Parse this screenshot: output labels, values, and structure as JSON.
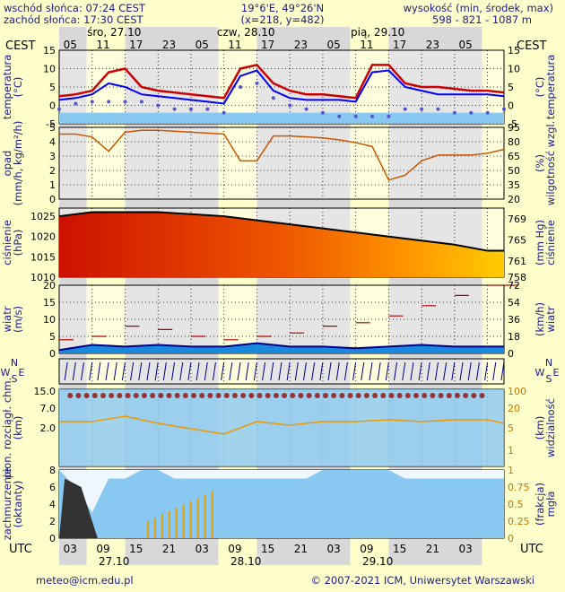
{
  "header": {
    "sunrise": "wschód słońca: 07:24 CEST",
    "sunset": "zachód słońca: 17:30 CEST",
    "coords": "19°6'E, 49°26'N",
    "grid": "(x=218,  y=482)",
    "alt_label": "wysokość (min, środek, max)",
    "alt_values": "598 - 821 - 1087 m"
  },
  "time_axis": {
    "top_zone": "CEST",
    "bottom_zone": "UTC",
    "top_hours": [
      "05",
      "11",
      "17",
      "23",
      "05",
      "11",
      "17",
      "23",
      "05",
      "11",
      "17",
      "23",
      "05"
    ],
    "bottom_hours": [
      "03",
      "09",
      "15",
      "21",
      "03",
      "09",
      "15",
      "21",
      "03",
      "09",
      "15",
      "21",
      "03"
    ],
    "top_days": [
      "śro, 27.10",
      "czw, 28.10",
      "pią, 29.10"
    ],
    "bottom_days": [
      "27.10",
      "28.10",
      "29.10"
    ]
  },
  "panels": {
    "temp": {
      "left": "temperatura",
      "left_unit": "(°C)",
      "right": "temperatura",
      "right_unit": "(°C)",
      "ticks": [
        "15",
        "10",
        "5",
        "0",
        "-5"
      ]
    },
    "precip": {
      "left": "opad",
      "left_unit": "(mm/h, kg/m²/h)",
      "right": "wilgotność wzgl.",
      "right_unit": "(%)",
      "ticks": [
        "5",
        "4",
        "3",
        "2",
        "1",
        "0"
      ],
      "rticks": [
        "95",
        "80",
        "65",
        "50",
        "35",
        "20"
      ]
    },
    "pressure": {
      "left": "ciśnienie",
      "left_unit": "(hPa)",
      "right": "ciśnienie",
      "right_unit": "(mm Hg)",
      "ticks": [
        "1025",
        "1020",
        "1015",
        "1010"
      ],
      "rticks": [
        "769",
        "765",
        "761",
        "758"
      ]
    },
    "wind": {
      "left": "wiatr",
      "left_unit": "(m/s)",
      "right": "wiatr",
      "right_unit": "(km/h)",
      "ticks": [
        "20",
        "15",
        "10",
        "5",
        "0"
      ],
      "rticks": [
        "72",
        "54",
        "36",
        "18",
        "0"
      ]
    },
    "winddir": {
      "n": "N",
      "s": "S",
      "w": "W",
      "e": "E"
    },
    "visib": {
      "left": "pion. rozciągł. chm.",
      "left_unit": "(km)",
      "right": "widzialność",
      "right_unit": "(km)",
      "ticks": [
        "15.0",
        "7.0",
        "2.0"
      ],
      "rticks": [
        "100",
        "20",
        "5",
        "1"
      ]
    },
    "cloud": {
      "left": "zachmurzenie",
      "left_unit": "(oktanty)",
      "right": "mgła",
      "right_unit": "(frakcja)",
      "ticks": [
        "8",
        "6",
        "4",
        "2",
        "0"
      ],
      "rticks": [
        "1",
        "0.75",
        "0.5",
        "0.25",
        "0"
      ]
    }
  },
  "footer": {
    "email": "meteo@icm.edu.pl",
    "copyright": "© 2007-2021 ICM, Uniwersytet Warszawski"
  },
  "colors": {
    "background": "#ffffcc",
    "label": "#1a1a8c",
    "night": "#d8d8d8",
    "temp_line": "#cc0000",
    "dew_line": "#0000ff",
    "sky_blue": "#89c8f0",
    "humidity": "#cc5500"
  },
  "chart_data": [
    {
      "type": "line",
      "name": "temperature",
      "x_hours": [
        0,
        3,
        6,
        9,
        12,
        15,
        18,
        21,
        24,
        27,
        30,
        33,
        36,
        39,
        42,
        45,
        48,
        51,
        54,
        57,
        60,
        63,
        66,
        69,
        72,
        75,
        78,
        81
      ],
      "series": [
        {
          "values": [
            2.5,
            3,
            4,
            9,
            10,
            5,
            4,
            3.5,
            3,
            2.5,
            2,
            10,
            11,
            6,
            4,
            3,
            3,
            2.5,
            2,
            11,
            11,
            6,
            5,
            5,
            4.5,
            4,
            4,
            3.5
          ]
        },
        {
          "values": [
            1.5,
            2,
            3,
            6,
            5,
            3,
            2.5,
            2,
            1.5,
            1,
            0.5,
            8,
            9.5,
            4,
            2,
            1.5,
            1.5,
            1.5,
            1,
            9,
            9.5,
            5,
            4,
            3,
            3,
            3,
            3,
            2.5
          ]
        },
        {
          "values": [
            -1,
            0.5,
            1,
            1,
            1,
            1,
            0,
            -1,
            -1,
            -1,
            -2,
            5,
            6,
            2,
            0,
            -1,
            -2,
            -3,
            -3,
            -3,
            -3,
            -1,
            -1,
            -1,
            -2,
            -2,
            -2,
            -1
          ]
        }
      ],
      "ylim": [
        -5,
        15
      ]
    },
    {
      "type": "line",
      "name": "humidity",
      "x_hours": [
        0,
        3,
        6,
        9,
        12,
        15,
        18,
        21,
        24,
        27,
        30,
        33,
        36,
        39,
        42,
        45,
        48,
        51,
        54,
        57,
        60,
        63,
        66,
        69,
        72,
        75,
        78,
        81
      ],
      "values": [
        88,
        88,
        85,
        70,
        90,
        92,
        92,
        91,
        90,
        89,
        88,
        60,
        60,
        86,
        86,
        85,
        84,
        82,
        79,
        75,
        40,
        45,
        60,
        66,
        66,
        66,
        68,
        72
      ],
      "precip_values": [
        0,
        0,
        0,
        0,
        0,
        0,
        0,
        0,
        0,
        0,
        0,
        0,
        0,
        0,
        0,
        0,
        0,
        0,
        0,
        0,
        0,
        0,
        0,
        0,
        0,
        0,
        0,
        0
      ],
      "ylim": [
        20,
        95
      ]
    },
    {
      "type": "area",
      "name": "pressure",
      "x_hours": [
        0,
        6,
        12,
        18,
        24,
        30,
        36,
        42,
        48,
        54,
        60,
        66,
        72,
        78,
        81
      ],
      "values": [
        1025,
        1026,
        1026,
        1026,
        1025.5,
        1025,
        1024,
        1023,
        1022,
        1021,
        1020,
        1019,
        1018,
        1016.5,
        1016.5
      ],
      "ylim": [
        1010,
        1027
      ]
    },
    {
      "type": "line",
      "name": "wind",
      "x_hours": [
        0,
        6,
        12,
        18,
        24,
        30,
        36,
        42,
        48,
        54,
        60,
        66,
        72,
        78,
        81
      ],
      "gust_values": [
        4,
        5,
        8,
        7,
        5,
        4,
        5,
        6,
        8,
        9,
        11,
        14,
        17,
        20,
        20
      ],
      "speed_values": [
        1,
        2.5,
        2,
        2.5,
        2,
        2,
        3,
        2,
        2,
        1.5,
        2,
        2.5,
        2,
        2,
        2
      ],
      "ylim": [
        0,
        20
      ]
    },
    {
      "type": "area",
      "name": "cloud_cover",
      "x_hours": [
        0,
        3,
        6,
        9,
        12,
        15,
        18,
        21,
        24,
        27,
        30,
        33,
        36,
        39,
        42,
        45,
        48,
        51,
        54,
        57,
        60,
        63,
        66,
        69,
        72,
        75,
        78,
        81
      ],
      "values": [
        8,
        6,
        3,
        7,
        7,
        8,
        8,
        7,
        7,
        7,
        7,
        7,
        7,
        7,
        7,
        7,
        8,
        8,
        8,
        8,
        8,
        7,
        7,
        7,
        7,
        7,
        7,
        7
      ],
      "ylim": [
        0,
        8
      ]
    }
  ]
}
